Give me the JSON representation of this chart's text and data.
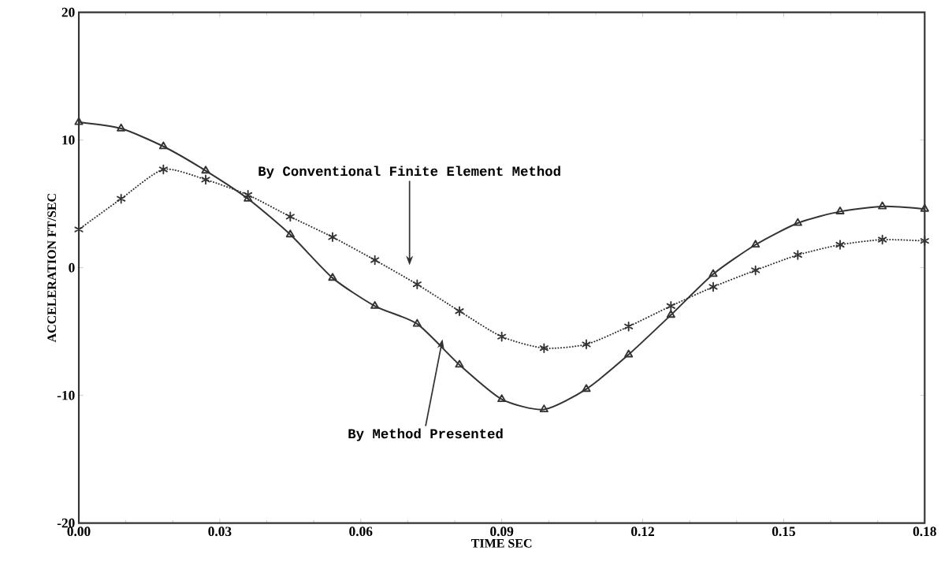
{
  "chart_data": {
    "type": "line",
    "xlabel": "TIME SEC",
    "ylabel": "ACCELERATION FT/SEC",
    "x": [
      0.0,
      0.009,
      0.018,
      0.027,
      0.036,
      0.045,
      0.054,
      0.063,
      0.072,
      0.081,
      0.09,
      0.099,
      0.108,
      0.117,
      0.126,
      0.135,
      0.144,
      0.153,
      0.162,
      0.171,
      0.18
    ],
    "series": [
      {
        "color": "#333333",
        "marker": "triangle",
        "line_style": "solid",
        "values": [
          11.4,
          10.9,
          9.5,
          7.6,
          5.4,
          2.6,
          -0.8,
          -3.0,
          -4.4,
          -7.6,
          -10.3,
          -11.1,
          -9.5,
          -6.8,
          -3.7,
          -0.5,
          1.8,
          3.5,
          4.4,
          4.8,
          4.6
        ]
      },
      {
        "color": "#333333",
        "marker": "cross",
        "line_style": "dotted",
        "values": [
          3.0,
          5.4,
          7.7,
          6.9,
          5.7,
          4.0,
          2.4,
          0.6,
          -1.3,
          -3.4,
          -5.4,
          -6.3,
          -6.0,
          -4.6,
          -3.0,
          -1.5,
          -0.2,
          1.0,
          1.8,
          2.2,
          2.1
        ]
      }
    ],
    "xlim": [
      0.0,
      0.18
    ],
    "xticks": [
      {
        "value": 0.0,
        "label": "0.00"
      },
      {
        "value": 0.03,
        "label": "0.03"
      },
      {
        "value": 0.06,
        "label": "0.06"
      },
      {
        "value": 0.09,
        "label": "0.09"
      },
      {
        "value": 0.12,
        "label": "0.12"
      },
      {
        "value": 0.15,
        "label": "0.15"
      },
      {
        "value": 0.18,
        "label": "0.18"
      }
    ],
    "ylim": [
      -20,
      20
    ],
    "yticks": [
      -20,
      -10,
      0,
      10,
      20
    ],
    "annotations": [
      "By Conventional Finite Element Method",
      "By Method Presented"
    ]
  }
}
